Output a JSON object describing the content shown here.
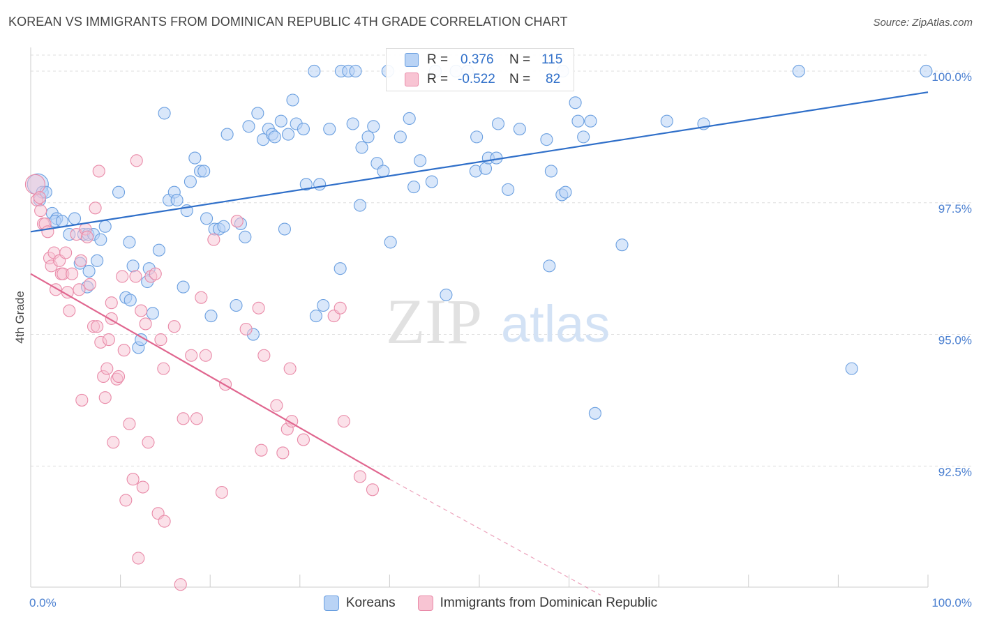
{
  "header": {
    "title": "KOREAN VS IMMIGRANTS FROM DOMINICAN REPUBLIC 4TH GRADE CORRELATION CHART",
    "source": "Source: ZipAtlas.com"
  },
  "watermark": {
    "zip": "ZIP",
    "atlas": "atlas"
  },
  "stats_legend": {
    "koreans": {
      "r_label": "R =",
      "r_value": "0.376",
      "n_label": "N =",
      "n_value": "115"
    },
    "dominican": {
      "r_label": "R =",
      "r_value": "-0.522",
      "n_label": "N =",
      "n_value": "82"
    }
  },
  "bottom_legend": {
    "koreans": "Koreans",
    "dominican": "Immigrants from Dominican Republic"
  },
  "colors": {
    "blue_fill": "#b9d3f5",
    "blue_stroke": "#6a9fe0",
    "blue_line": "#2f6fc9",
    "pink_fill": "#f8c4d3",
    "pink_stroke": "#e98aa8",
    "pink_line": "#e0668f",
    "tick_text": "#4a7fd0",
    "grid": "#dddddd"
  },
  "chart_data": {
    "type": "scatter",
    "title": "KOREAN VS IMMIGRANTS FROM DOMINICAN REPUBLIC 4TH GRADE CORRELATION CHART",
    "xlabel": "",
    "ylabel": "4th Grade",
    "xlim": [
      0,
      100
    ],
    "ylim": [
      90.2,
      100.45
    ],
    "x_tick_labels": [
      "0.0%",
      "100.0%"
    ],
    "y_ticks": [
      92.5,
      95.0,
      97.5,
      100.0
    ],
    "y_tick_labels": [
      "92.5%",
      "95.0%",
      "97.5%",
      "100.0%"
    ],
    "grid": true,
    "series": [
      {
        "name": "Koreans",
        "trend": {
          "x": [
            0,
            100
          ],
          "y": [
            96.95,
            99.6
          ]
        },
        "points": [
          [
            0.8,
            97.85
          ],
          [
            1.0,
            97.55
          ],
          [
            1.3,
            97.7
          ],
          [
            1.7,
            97.7
          ],
          [
            2.4,
            97.3
          ],
          [
            2.9,
            97.2
          ],
          [
            2.7,
            97.15
          ],
          [
            3.5,
            97.15
          ],
          [
            4.3,
            96.9
          ],
          [
            4.9,
            97.2
          ],
          [
            5.5,
            96.35
          ],
          [
            5.9,
            96.9
          ],
          [
            6.4,
            96.9
          ],
          [
            6.3,
            95.9
          ],
          [
            6.5,
            96.2
          ],
          [
            7.0,
            96.9
          ],
          [
            7.4,
            96.4
          ],
          [
            7.8,
            96.8
          ],
          [
            8.3,
            97.05
          ],
          [
            9.8,
            97.7
          ],
          [
            10.6,
            95.7
          ],
          [
            11.0,
            96.75
          ],
          [
            11.1,
            95.65
          ],
          [
            11.4,
            96.3
          ],
          [
            12.0,
            94.75
          ],
          [
            12.3,
            94.9
          ],
          [
            13.0,
            96.0
          ],
          [
            13.2,
            96.25
          ],
          [
            13.6,
            95.4
          ],
          [
            14.3,
            96.6
          ],
          [
            14.9,
            99.2
          ],
          [
            15.4,
            97.55
          ],
          [
            16.0,
            97.7
          ],
          [
            16.3,
            97.55
          ],
          [
            17.0,
            95.9
          ],
          [
            17.4,
            97.35
          ],
          [
            17.8,
            97.9
          ],
          [
            18.3,
            98.35
          ],
          [
            18.9,
            98.1
          ],
          [
            19.3,
            98.1
          ],
          [
            19.6,
            97.2
          ],
          [
            20.1,
            95.35
          ],
          [
            20.5,
            97.0
          ],
          [
            21.0,
            97.0
          ],
          [
            21.5,
            97.05
          ],
          [
            21.9,
            98.8
          ],
          [
            22.9,
            95.55
          ],
          [
            23.4,
            97.1
          ],
          [
            23.9,
            96.85
          ],
          [
            24.3,
            98.95
          ],
          [
            24.8,
            95.0
          ],
          [
            25.3,
            99.2
          ],
          [
            25.9,
            98.7
          ],
          [
            26.5,
            98.9
          ],
          [
            26.9,
            98.8
          ],
          [
            27.2,
            98.75
          ],
          [
            27.9,
            99.05
          ],
          [
            28.3,
            97.0
          ],
          [
            28.7,
            98.8
          ],
          [
            29.6,
            99.0
          ],
          [
            29.2,
            99.45
          ],
          [
            30.4,
            98.9
          ],
          [
            30.7,
            97.85
          ],
          [
            31.6,
            100.0
          ],
          [
            31.8,
            95.35
          ],
          [
            32.6,
            95.55
          ],
          [
            32.2,
            97.85
          ],
          [
            33.3,
            98.9
          ],
          [
            34.6,
            100.0
          ],
          [
            34.5,
            96.25
          ],
          [
            35.4,
            100.0
          ],
          [
            35.9,
            99.0
          ],
          [
            36.2,
            100.0
          ],
          [
            36.9,
            98.55
          ],
          [
            36.7,
            97.45
          ],
          [
            37.6,
            98.75
          ],
          [
            38.2,
            98.95
          ],
          [
            38.6,
            98.25
          ],
          [
            39.3,
            98.1
          ],
          [
            39.8,
            100.0
          ],
          [
            40.1,
            96.75
          ],
          [
            41.2,
            98.75
          ],
          [
            42.2,
            99.1
          ],
          [
            42.7,
            97.8
          ],
          [
            43.4,
            98.3
          ],
          [
            44.7,
            97.9
          ],
          [
            45.1,
            100.0
          ],
          [
            46.3,
            95.75
          ],
          [
            47.4,
            100.0
          ],
          [
            48.7,
            100.0
          ],
          [
            49.6,
            98.1
          ],
          [
            49.7,
            98.75
          ],
          [
            50.7,
            98.15
          ],
          [
            51.0,
            98.35
          ],
          [
            51.9,
            98.35
          ],
          [
            52.1,
            99.0
          ],
          [
            53.2,
            97.75
          ],
          [
            54.5,
            98.9
          ],
          [
            57.5,
            98.7
          ],
          [
            57.8,
            96.3
          ],
          [
            58.0,
            98.1
          ],
          [
            59.2,
            97.65
          ],
          [
            59.6,
            97.7
          ],
          [
            60.7,
            99.4
          ],
          [
            61.0,
            99.05
          ],
          [
            61.6,
            98.75
          ],
          [
            62.4,
            99.05
          ],
          [
            62.9,
            93.5
          ],
          [
            65.9,
            96.7
          ],
          [
            70.9,
            99.05
          ],
          [
            75.0,
            99.0
          ],
          [
            85.6,
            100.0
          ],
          [
            91.5,
            94.35
          ],
          [
            99.8,
            100.0
          ],
          [
            59.3,
            100.0
          ]
        ]
      },
      {
        "name": "Immigrants from Dominican Republic",
        "trend": {
          "x": [
            0,
            40
          ],
          "y": [
            96.15,
            92.25
          ]
        },
        "trend_dashed": {
          "x": [
            40,
            63.5
          ],
          "y": [
            92.25,
            90.05
          ]
        },
        "points": [
          [
            0.5,
            97.85
          ],
          [
            0.7,
            97.55
          ],
          [
            1.0,
            97.6
          ],
          [
            1.1,
            97.35
          ],
          [
            1.4,
            97.1
          ],
          [
            1.6,
            97.1
          ],
          [
            1.9,
            96.95
          ],
          [
            2.1,
            96.45
          ],
          [
            2.3,
            96.3
          ],
          [
            2.6,
            96.55
          ],
          [
            2.8,
            95.85
          ],
          [
            3.2,
            96.4
          ],
          [
            3.4,
            96.15
          ],
          [
            3.6,
            96.15
          ],
          [
            3.9,
            96.55
          ],
          [
            4.1,
            95.8
          ],
          [
            4.3,
            95.45
          ],
          [
            4.6,
            96.15
          ],
          [
            5.1,
            96.9
          ],
          [
            5.4,
            95.85
          ],
          [
            5.6,
            96.4
          ],
          [
            5.7,
            93.75
          ],
          [
            6.1,
            97.0
          ],
          [
            6.3,
            96.85
          ],
          [
            6.6,
            95.95
          ],
          [
            7.0,
            95.15
          ],
          [
            7.2,
            97.4
          ],
          [
            7.4,
            95.15
          ],
          [
            7.6,
            98.1
          ],
          [
            7.8,
            94.85
          ],
          [
            8.1,
            94.2
          ],
          [
            8.3,
            93.8
          ],
          [
            8.5,
            94.35
          ],
          [
            8.7,
            94.9
          ],
          [
            9.0,
            95.3
          ],
          [
            9.0,
            95.6
          ],
          [
            9.2,
            92.95
          ],
          [
            9.6,
            94.15
          ],
          [
            9.8,
            94.2
          ],
          [
            10.2,
            96.1
          ],
          [
            10.4,
            94.7
          ],
          [
            10.6,
            91.85
          ],
          [
            11.0,
            93.3
          ],
          [
            11.4,
            92.25
          ],
          [
            11.8,
            98.3
          ],
          [
            11.7,
            96.1
          ],
          [
            12.3,
            95.45
          ],
          [
            12.5,
            92.1
          ],
          [
            12.8,
            95.2
          ],
          [
            13.1,
            92.95
          ],
          [
            13.4,
            96.1
          ],
          [
            13.9,
            96.15
          ],
          [
            14.2,
            91.6
          ],
          [
            14.5,
            94.9
          ],
          [
            14.8,
            94.35
          ],
          [
            14.9,
            91.45
          ],
          [
            16.0,
            95.15
          ],
          [
            16.7,
            90.25
          ],
          [
            17.0,
            93.4
          ],
          [
            17.9,
            94.6
          ],
          [
            18.5,
            93.4
          ],
          [
            19.0,
            95.7
          ],
          [
            19.5,
            94.6
          ],
          [
            20.4,
            96.8
          ],
          [
            21.3,
            92.0
          ],
          [
            21.7,
            94.05
          ],
          [
            23.0,
            97.15
          ],
          [
            24.0,
            95.1
          ],
          [
            25.4,
            95.5
          ],
          [
            25.7,
            92.8
          ],
          [
            26.0,
            94.6
          ],
          [
            27.4,
            93.65
          ],
          [
            28.1,
            92.75
          ],
          [
            28.6,
            93.2
          ],
          [
            28.9,
            94.35
          ],
          [
            29.1,
            93.35
          ],
          [
            30.4,
            93.0
          ],
          [
            33.8,
            95.35
          ],
          [
            34.5,
            95.5
          ],
          [
            34.9,
            93.35
          ],
          [
            36.7,
            92.3
          ],
          [
            38.1,
            92.05
          ],
          [
            12.0,
            90.75
          ]
        ]
      }
    ]
  }
}
